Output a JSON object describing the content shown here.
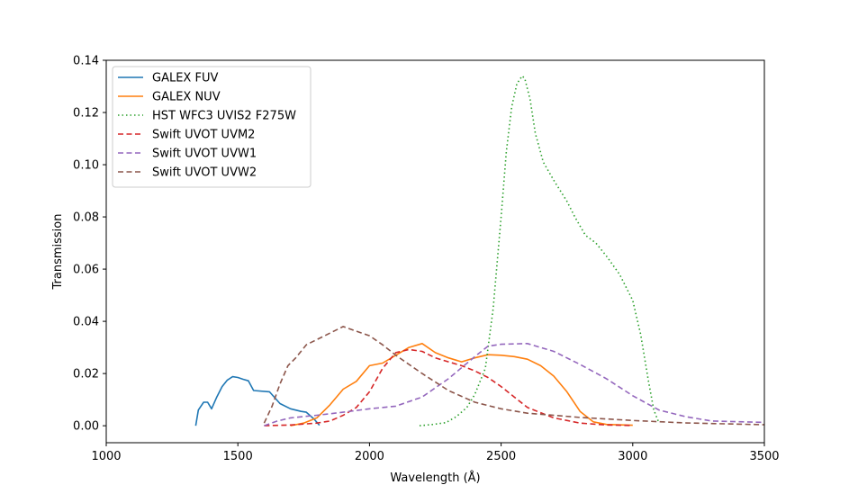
{
  "chart_data": {
    "type": "line",
    "title": "",
    "xlabel": "Wavelength (Å)",
    "ylabel": "Transmission",
    "xlim": [
      1000,
      3500
    ],
    "ylim": [
      -0.0065,
      0.14
    ],
    "xticks": [
      1000,
      1500,
      2000,
      2500,
      3000,
      3500
    ],
    "xtick_labels": [
      "1000",
      "1500",
      "2000",
      "2500",
      "3000",
      "3500"
    ],
    "yticks": [
      0.0,
      0.02,
      0.04,
      0.06,
      0.08,
      0.1,
      0.12,
      0.14
    ],
    "ytick_labels": [
      "0.00",
      "0.02",
      "0.04",
      "0.06",
      "0.08",
      "0.10",
      "0.12",
      "0.14"
    ],
    "grid": false,
    "legend_position": "upper-left",
    "series": [
      {
        "name": "GALEX FUV",
        "color": "#1f77b4",
        "dash": "solid",
        "x": [
          1340,
          1350,
          1370,
          1385,
          1400,
          1420,
          1440,
          1460,
          1480,
          1500,
          1520,
          1540,
          1560,
          1620,
          1660,
          1700,
          1740,
          1760,
          1790,
          1810
        ],
        "y": [
          0.0,
          0.006,
          0.009,
          0.009,
          0.0065,
          0.011,
          0.015,
          0.0175,
          0.0188,
          0.0185,
          0.0178,
          0.0172,
          0.0135,
          0.013,
          0.0085,
          0.0065,
          0.0055,
          0.0052,
          0.0025,
          0.0002
        ]
      },
      {
        "name": "GALEX NUV",
        "color": "#ff7f0e",
        "dash": "solid",
        "x": [
          1700,
          1750,
          1800,
          1850,
          1900,
          1950,
          2000,
          2050,
          2100,
          2150,
          2200,
          2250,
          2300,
          2350,
          2400,
          2450,
          2500,
          2550,
          2600,
          2650,
          2700,
          2750,
          2800,
          2850,
          2900,
          3000
        ],
        "y": [
          0.0,
          0.001,
          0.003,
          0.008,
          0.014,
          0.017,
          0.023,
          0.024,
          0.027,
          0.03,
          0.0315,
          0.028,
          0.026,
          0.0245,
          0.026,
          0.0272,
          0.027,
          0.0265,
          0.0255,
          0.023,
          0.019,
          0.013,
          0.0055,
          0.0015,
          0.0005,
          0.0002
        ]
      },
      {
        "name": "HST WFC3 UVIS2 F275W",
        "color": "#2ca02c",
        "dash": "dotted",
        "x": [
          2190,
          2240,
          2290,
          2330,
          2370,
          2400,
          2440,
          2470,
          2500,
          2520,
          2540,
          2560,
          2580,
          2590,
          2610,
          2630,
          2660,
          2700,
          2750,
          2780,
          2820,
          2860,
          2900,
          2950,
          3000,
          3030,
          3060,
          3080,
          3100
        ],
        "y": [
          0.0,
          0.0005,
          0.0012,
          0.0035,
          0.007,
          0.012,
          0.022,
          0.045,
          0.08,
          0.105,
          0.122,
          0.131,
          0.134,
          0.133,
          0.125,
          0.112,
          0.101,
          0.094,
          0.086,
          0.08,
          0.073,
          0.07,
          0.065,
          0.058,
          0.048,
          0.035,
          0.017,
          0.006,
          0.001
        ]
      },
      {
        "name": "Swift UVOT UVM2",
        "color": "#d62728",
        "dash": "dashed",
        "x": [
          1600,
          1700,
          1800,
          1850,
          1900,
          1950,
          2000,
          2050,
          2100,
          2150,
          2200,
          2250,
          2300,
          2350,
          2400,
          2450,
          2500,
          2550,
          2600,
          2700,
          2800,
          2900,
          3000
        ],
        "y": [
          0.0,
          0.0003,
          0.001,
          0.0018,
          0.004,
          0.007,
          0.013,
          0.022,
          0.028,
          0.0292,
          0.0285,
          0.026,
          0.0245,
          0.023,
          0.021,
          0.0185,
          0.015,
          0.011,
          0.007,
          0.003,
          0.001,
          0.0003,
          0.0001
        ]
      },
      {
        "name": "Swift UVOT UVW1",
        "color": "#9467bd",
        "dash": "dashed",
        "x": [
          1600,
          1650,
          1700,
          1800,
          1900,
          2000,
          2100,
          2200,
          2300,
          2400,
          2450,
          2500,
          2600,
          2700,
          2800,
          2900,
          3000,
          3100,
          3200,
          3300,
          3500
        ],
        "y": [
          0.0,
          0.0018,
          0.003,
          0.004,
          0.0052,
          0.0065,
          0.0075,
          0.011,
          0.018,
          0.0265,
          0.0305,
          0.0312,
          0.0315,
          0.0285,
          0.0235,
          0.018,
          0.0115,
          0.006,
          0.0035,
          0.0018,
          0.0013
        ]
      },
      {
        "name": "Swift UVOT UVW2",
        "color": "#8c564b",
        "dash": "dashed",
        "x": [
          1600,
          1630,
          1660,
          1690,
          1720,
          1760,
          1800,
          1850,
          1900,
          1950,
          2000,
          2050,
          2100,
          2150,
          2200,
          2300,
          2400,
          2500,
          2600,
          2800,
          3000,
          3200,
          3500
        ],
        "y": [
          0.001,
          0.0075,
          0.016,
          0.023,
          0.026,
          0.031,
          0.033,
          0.0355,
          0.038,
          0.0362,
          0.0345,
          0.031,
          0.027,
          0.0235,
          0.02,
          0.0135,
          0.009,
          0.0065,
          0.0048,
          0.0032,
          0.002,
          0.0011,
          0.0004
        ]
      }
    ]
  }
}
